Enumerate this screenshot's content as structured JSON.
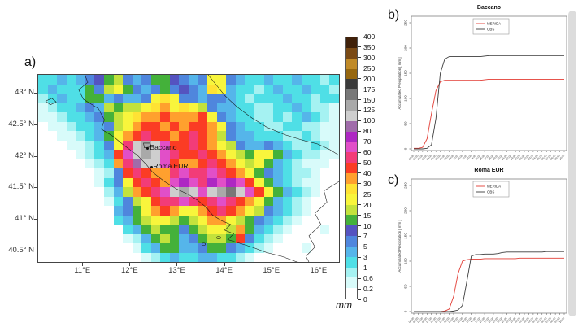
{
  "panel_labels": {
    "a": "a)",
    "b": "b)",
    "c": "c)"
  },
  "chart_data": [
    {
      "id": "a",
      "type": "heatmap",
      "subject": "accumulated precipitation map, central Italy",
      "colorbar": {
        "unit": "mm",
        "levels": [
          0,
          0.2,
          0.6,
          1,
          3,
          5,
          7,
          10,
          15,
          20,
          25,
          30,
          40,
          50,
          60,
          70,
          80,
          100,
          125,
          150,
          175,
          200,
          250,
          300,
          350,
          400
        ],
        "band_colors": [
          "#ffffff",
          "#d8fbfa",
          "#a5f2f2",
          "#4fdfe6",
          "#55b5ea",
          "#4f86dd",
          "#5553c0",
          "#44b13a",
          "#c3e23c",
          "#f8f53c",
          "#ffe234",
          "#ffa02e",
          "#fb3c24",
          "#f23c78",
          "#e14fc8",
          "#ae28c3",
          "#a06caa",
          "#cecece",
          "#a9a9a9",
          "#787878",
          "#3a3a3a",
          "#97670f",
          "#c08a28",
          "#7a4a15",
          "#40210a"
        ]
      },
      "bounds": {
        "lon_min": 10.05,
        "lon_max": 16.45,
        "lat_min": 40.3,
        "lat_max": 43.3
      },
      "x_axis": {
        "ticks": [
          {
            "label": "11°E",
            "lon": 11
          },
          {
            "label": "12°E",
            "lon": 12
          },
          {
            "label": "13°E",
            "lon": 13
          },
          {
            "label": "14°E",
            "lon": 14
          },
          {
            "label": "15°E",
            "lon": 15
          },
          {
            "label": "16°E",
            "lon": 16
          }
        ]
      },
      "y_axis": {
        "ticks": [
          {
            "label": "43° N",
            "lat": 43
          },
          {
            "label": "42.5° N",
            "lat": 42.5
          },
          {
            "label": "42° N",
            "lat": 42
          },
          {
            "label": "41.5° N",
            "lat": 41.5
          },
          {
            "label": "41° N",
            "lat": 41
          },
          {
            "label": "40.5° N",
            "lat": 40.5
          }
        ]
      },
      "markers": [
        {
          "name": "Baccano",
          "lon": 12.38,
          "lat": 42.12
        },
        {
          "name": "Roma EUR",
          "lon": 12.45,
          "lat": 41.83
        }
      ],
      "grid": {
        "note": "approximate mm values encoded per cell, 32 cols x 20 rows, north to south",
        "encoding": {
          ".": 0,
          "a": 0.4,
          "b": 0.8,
          "c": 2,
          "d": 4,
          "e": 6,
          "f": 8,
          "g": 12,
          "h": 17,
          "i": 22,
          "j": 27,
          "k": 35,
          "l": 45,
          "m": 55,
          "n": 65,
          "o": 75,
          "p": 90,
          "q": 110,
          "r": 135,
          "s": 160,
          "t": 185
        },
        "rows": [
          "ccdcdefghedeggfedeiiedccdccdccbc",
          "cdcccgehigedegefedjidccbcdccdccb",
          "bcdccggdeddeijieedeedcbcccdccbcc",
          "abccdedhghhijkijiheddccbbccdcbba",
          "aabccdeghijkklkkkliedccbbcbcdcba",
          ".aabccdehikllklkllkiedccbbccbbaa",
          "..aabcdgiklmllklmlkheddcccbbcbaa",
          "...aabceimqrqnllmlkiheddedcbbcba",
          "....abcdlnqrqnmllmlkihgiigdcbbaa",
          ".....abckmpqqnlkklmlkihigdcbaaa.",
          "......abelmlkkmnmmnmlkigedcbba..",
          "......aceilmlknonmononligdcbaa..",
          ".......bdhklmnqrqnqrsqnligdcba..",
          ".......acehilmmnmlmnmlkigdcba...",
          "........degiklkiiklmlkihedcba...",
          "........cdghiihghikkihgedcba....",
          ".........cdghggeghiihkgdcba...a.",
          ".........abdghgdeghhglecba......",
          "..........acdggddeggedcba...a...",
          "...........abcdccddccba........."
        ]
      }
    },
    {
      "id": "b",
      "type": "line",
      "title": "Baccano",
      "ylabel": "Accumulated Precipitation [ mm ]",
      "ylim": [
        0,
        250
      ],
      "yticks": [
        0,
        50,
        100,
        150,
        200,
        250
      ],
      "x_tick_labels": [
        "00:00",
        "01:00",
        "02:00",
        "03:00",
        "04:00",
        "05:00",
        "06:00",
        "07:00",
        "08:00",
        "09:00",
        "10:00",
        "11:00",
        "12:00",
        "13:00",
        "14:00",
        "15:00",
        "16:00",
        "17:00",
        "18:00",
        "19:00",
        "20:00",
        "21:00",
        "22:00",
        "23:00",
        "00:00",
        "01:00",
        "02:00",
        "03:00",
        "04:00",
        "05:00",
        "06:00",
        "07:00",
        "08:00",
        "09:00",
        "10:00"
      ],
      "legend": [
        {
          "name": "MERIDA",
          "color": "#e23b33"
        },
        {
          "name": "OBS",
          "color": "#3c3c3c"
        }
      ],
      "series": [
        {
          "name": "MERIDA",
          "color": "#e23b33",
          "values": [
            1,
            1,
            3,
            20,
            70,
            115,
            133,
            136,
            136,
            136,
            136,
            136,
            136,
            136,
            136,
            136,
            137,
            138,
            138,
            138,
            138,
            138,
            138,
            138,
            138,
            138,
            138,
            138,
            138,
            138,
            138,
            138,
            138,
            138,
            138
          ]
        },
        {
          "name": "OBS",
          "color": "#3c3c3c",
          "values": [
            0,
            0,
            0,
            1,
            8,
            60,
            150,
            178,
            183,
            183,
            183,
            183,
            183,
            183,
            183,
            183,
            184,
            185,
            185,
            185,
            185,
            185,
            185,
            185,
            185,
            185,
            185,
            185,
            185,
            185,
            185,
            185,
            185,
            185,
            185
          ]
        }
      ]
    },
    {
      "id": "c",
      "type": "line",
      "title": "Roma EUR",
      "ylabel": "Accumulated Precipitation [ mm ]",
      "ylim": [
        0,
        250
      ],
      "yticks": [
        0,
        50,
        100,
        150,
        200,
        250
      ],
      "x_tick_labels": [
        "00:00",
        "01:00",
        "02:00",
        "03:00",
        "04:00",
        "05:00",
        "06:00",
        "07:00",
        "08:00",
        "09:00",
        "10:00",
        "11:00",
        "12:00",
        "13:00",
        "14:00",
        "15:00",
        "16:00",
        "17:00",
        "18:00",
        "19:00",
        "20:00",
        "21:00",
        "22:00",
        "23:00",
        "00:00",
        "01:00",
        "02:00",
        "03:00",
        "04:00",
        "05:00",
        "06:00",
        "07:00",
        "08:00",
        "09:00",
        "10:00"
      ],
      "legend": [
        {
          "name": "MERIDA",
          "color": "#e23b33"
        },
        {
          "name": "OBS",
          "color": "#3c3c3c"
        }
      ],
      "series": [
        {
          "name": "MERIDA",
          "color": "#e23b33",
          "values": [
            0,
            0,
            0,
            0,
            0,
            0,
            0,
            1,
            5,
            30,
            75,
            100,
            103,
            104,
            104,
            104,
            105,
            105,
            105,
            105,
            105,
            105,
            105,
            105,
            106,
            106,
            106,
            106,
            106,
            106,
            106,
            106,
            106,
            106,
            106
          ]
        },
        {
          "name": "OBS",
          "color": "#3c3c3c",
          "values": [
            0,
            0,
            0,
            0,
            0,
            0,
            0,
            0,
            0,
            1,
            3,
            12,
            60,
            110,
            113,
            113,
            114,
            114,
            114,
            115,
            117,
            118,
            118,
            118,
            118,
            118,
            118,
            118,
            118,
            118,
            119,
            119,
            119,
            119,
            119
          ]
        }
      ]
    }
  ]
}
